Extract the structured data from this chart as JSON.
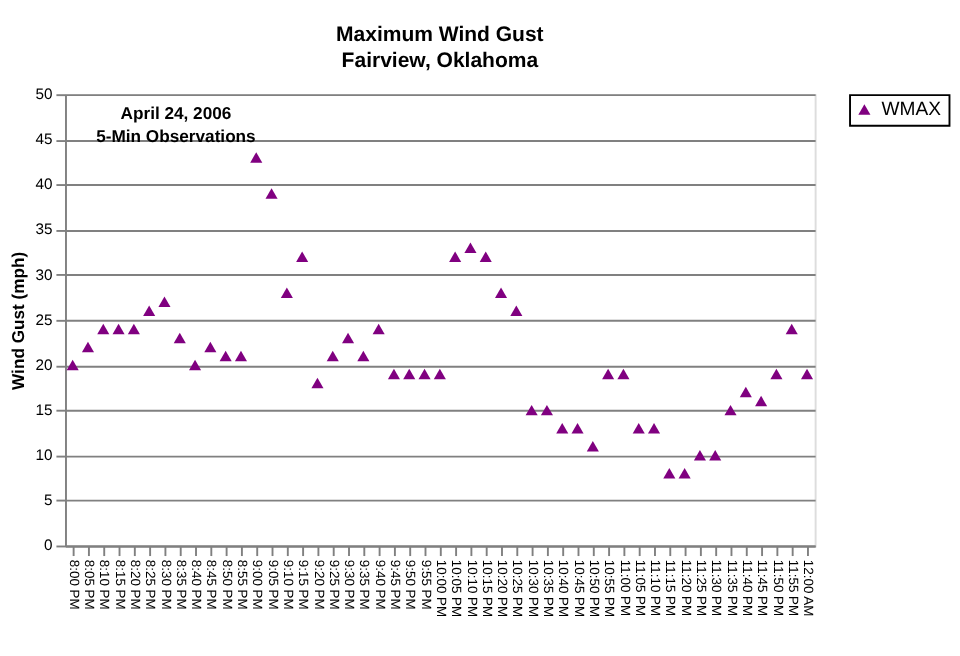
{
  "chart_data": {
    "type": "scatter",
    "title": "Maximum Wind Gust",
    "subtitle": "Fairview, Oklahoma",
    "ylabel": "Wind Gust (mph)",
    "categories": [
      "8:00 PM",
      "8:05 PM",
      "8:10 PM",
      "8:15 PM",
      "8:20 PM",
      "8:25 PM",
      "8:30 PM",
      "8:35 PM",
      "8:40 PM",
      "8:45 PM",
      "8:50 PM",
      "8:55 PM",
      "9:00 PM",
      "9:05 PM",
      "9:10 PM",
      "9:15 PM",
      "9:20 PM",
      "9:25 PM",
      "9:30 PM",
      "9:35 PM",
      "9:40 PM",
      "9:45 PM",
      "9:50 PM",
      "9:55 PM",
      "10:00 PM",
      "10:05 PM",
      "10:10 PM",
      "10:15 PM",
      "10:20 PM",
      "10:25 PM",
      "10:30 PM",
      "10:35 PM",
      "10:40 PM",
      "10:45 PM",
      "10:50 PM",
      "10:55 PM",
      "11:00 PM",
      "11:05 PM",
      "11:10 PM",
      "11:15 PM",
      "11:20 PM",
      "11:25 PM",
      "11:30 PM",
      "11:35 PM",
      "11:40 PM",
      "11:45 PM",
      "11:50 PM",
      "11:55 PM",
      "12:00 AM"
    ],
    "series": [
      {
        "name": "WMAX",
        "color": "#800080",
        "values": [
          20,
          22,
          24,
          24,
          24,
          26,
          27,
          23,
          20,
          22,
          21,
          21,
          43,
          39,
          28,
          32,
          18,
          21,
          23,
          21,
          24,
          19,
          19,
          19,
          19,
          32,
          33,
          32,
          28,
          26,
          15,
          15,
          13,
          13,
          11,
          19,
          19,
          13,
          13,
          8,
          8,
          10,
          10,
          15,
          17,
          16,
          19,
          24,
          19
        ]
      }
    ],
    "ylim": [
      0,
      50
    ],
    "yticks": [
      0,
      5,
      10,
      15,
      20,
      25,
      30,
      35,
      40,
      45,
      50
    ],
    "grid": "y",
    "legend": "right",
    "marker": "triangle",
    "annotations": [
      "April 24, 2006",
      "5-Min Observations"
    ]
  }
}
